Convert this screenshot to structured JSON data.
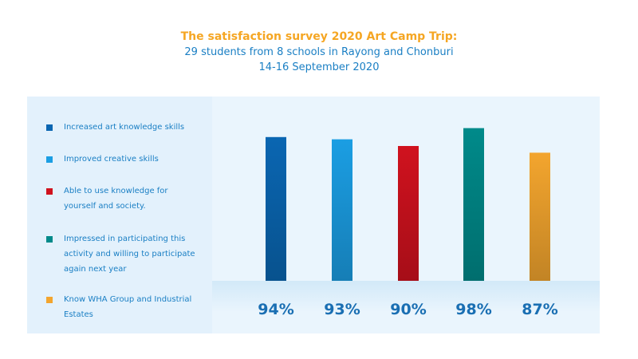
{
  "header": {
    "title": "The satisfaction survey 2020 Art Camp Trip:",
    "subtitle_line1": "29 students from 8 schools in Rayong and Chonburi",
    "subtitle_line2": "14-16 September 2020"
  },
  "colors": {
    "title": "#f5a623",
    "text": "#1a7fc4",
    "value_label": "#1a6fb3"
  },
  "chart_data": {
    "type": "bar",
    "title": "The satisfaction survey 2020 Art Camp Trip:",
    "categories": [
      "Increased art knowledge skills",
      "Improved creative skills",
      "Able to use knowledge for yourself and society.",
      "Impressed in participating this activity and willing to participate again next year",
      "Know WHA Group and Industrial Estates"
    ],
    "values": [
      94,
      93,
      90,
      98,
      87
    ],
    "value_labels": [
      "94%",
      "93%",
      "90%",
      "98%",
      "87%"
    ],
    "colors": [
      "#0a66b2",
      "#1b9ee3",
      "#d0121e",
      "#008a8a",
      "#f3a52e"
    ],
    "legend_position": "left",
    "grid": false
  },
  "legend": {
    "items": [
      {
        "lines": [
          "Increased art knowledge skills"
        ]
      },
      {
        "lines": [
          "Improved creative skills"
        ]
      },
      {
        "lines": [
          "Able to use knowledge for",
          "yourself and society."
        ]
      },
      {
        "lines": [
          "Impressed in participating this",
          "activity and willing to participate",
          "again next year"
        ]
      },
      {
        "lines": [
          "Know WHA Group and Industrial",
          "Estates"
        ]
      }
    ]
  }
}
